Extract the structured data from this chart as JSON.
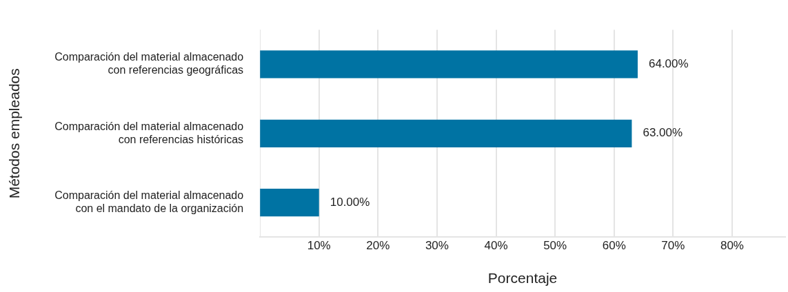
{
  "chart_data": {
    "type": "bar",
    "orientation": "horizontal",
    "xlabel": "Porcentaje",
    "ylabel": "Métodos empleados",
    "categories": [
      "Comparación del material almacenado\ncon referencias geográficas",
      "Comparación del material almacenado\ncon referencias históricas",
      "Comparación del material almacenado\ncon el mandato de la organización"
    ],
    "values": [
      64,
      63,
      10
    ],
    "color": "#0073a3",
    "value_labels": [
      "64.00%",
      "63.00%",
      "10.00%"
    ],
    "xlim": [
      0,
      89
    ],
    "xticks": [
      {
        "value": 10,
        "label": "10%"
      },
      {
        "value": 20,
        "label": "20%"
      },
      {
        "value": 30,
        "label": "30%"
      },
      {
        "value": 40,
        "label": "40%"
      },
      {
        "value": 50,
        "label": "50%"
      },
      {
        "value": 60,
        "label": "60%"
      },
      {
        "value": 70,
        "label": "70%"
      },
      {
        "value": 80,
        "label": "80%"
      }
    ],
    "grid": "x",
    "legend": false
  }
}
